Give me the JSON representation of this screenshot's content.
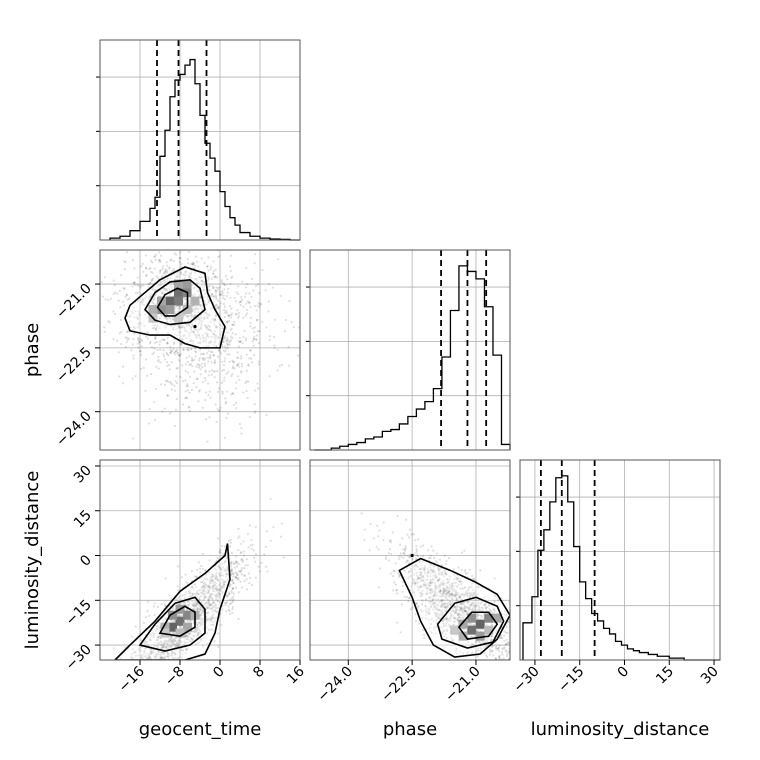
{
  "chart_data": {
    "type": "corner",
    "parameters": [
      "geocent_time",
      "phase",
      "luminosity_distance"
    ],
    "ranges": {
      "geocent_time": [
        -24,
        16
      ],
      "phase": [
        -24.9,
        -20.2
      ],
      "luminosity_distance": [
        -35,
        32
      ]
    },
    "ticks": {
      "geocent_time": {
        "values": [
          -16,
          -8,
          0,
          8,
          16
        ],
        "labels": [
          "−16",
          "−8",
          "0",
          "8",
          "16"
        ]
      },
      "phase": {
        "values": [
          -24.0,
          -22.5,
          -21.0
        ],
        "labels": [
          "−24.0",
          "−22.5",
          "−21.0"
        ]
      },
      "luminosity_distance": {
        "values": [
          -30,
          -15,
          0,
          15,
          30
        ],
        "labels": [
          "−30",
          "−15",
          "0",
          "15",
          "30"
        ]
      }
    },
    "quantiles": {
      "geocent_time": [
        -12.6,
        -8.3,
        -2.7
      ],
      "phase": [
        -21.82,
        -21.2,
        -20.76
      ],
      "luminosity_distance": [
        -28,
        -21,
        -10
      ]
    },
    "grid": true,
    "marginal_histograms": {
      "geocent_time": {
        "bins": [
          -22,
          -20,
          -18,
          -16,
          -14,
          -13,
          -12,
          -11,
          -10,
          -9,
          -8,
          -7,
          -6,
          -5,
          -4,
          -3,
          -2,
          -1,
          0,
          1,
          2,
          3,
          4,
          6,
          8,
          10,
          12,
          14,
          16
        ],
        "counts": [
          0.01,
          0.02,
          0.05,
          0.1,
          0.17,
          0.23,
          0.45,
          0.59,
          0.77,
          0.86,
          0.89,
          0.94,
          0.97,
          0.84,
          0.67,
          0.52,
          0.44,
          0.37,
          0.26,
          0.18,
          0.12,
          0.08,
          0.04,
          0.02,
          0.01,
          0.005,
          0.003,
          0.0
        ]
      },
      "phase": {
        "bins": [
          -24.8,
          -24.4,
          -24.2,
          -24.0,
          -23.8,
          -23.6,
          -23.4,
          -23.2,
          -23.0,
          -22.8,
          -22.6,
          -22.4,
          -22.2,
          -22.0,
          -21.8,
          -21.6,
          -21.4,
          -21.2,
          -21.0,
          -20.8,
          -20.6,
          -20.4,
          -20.2
        ],
        "counts": [
          0.0,
          0.01,
          0.02,
          0.03,
          0.04,
          0.06,
          0.07,
          0.1,
          0.11,
          0.14,
          0.18,
          0.22,
          0.26,
          0.33,
          0.5,
          0.75,
          0.99,
          0.96,
          0.92,
          0.77,
          0.51,
          0.03
        ]
      },
      "luminosity_distance": {
        "bins": [
          -34,
          -31,
          -29,
          -27,
          -25,
          -23,
          -21,
          -19,
          -17,
          -15,
          -13,
          -11,
          -9,
          -7,
          -5,
          -3,
          -1,
          1,
          3,
          5,
          8,
          11,
          15,
          20,
          32
        ],
        "counts": [
          0.2,
          0.34,
          0.59,
          0.7,
          0.85,
          0.98,
          0.99,
          0.85,
          0.61,
          0.42,
          0.33,
          0.25,
          0.21,
          0.17,
          0.14,
          0.1,
          0.08,
          0.06,
          0.05,
          0.04,
          0.03,
          0.02,
          0.01,
          0.0
        ]
      }
    },
    "joint_peaks": [
      {
        "x": "geocent_time",
        "y": "phase",
        "peak": [
          -8.5,
          -21.4
        ]
      },
      {
        "x": "geocent_time",
        "y": "luminosity_distance",
        "peak": [
          -7.8,
          -22
        ]
      },
      {
        "x": "phase",
        "y": "luminosity_distance",
        "peak": [
          -20.9,
          -23
        ]
      }
    ]
  }
}
